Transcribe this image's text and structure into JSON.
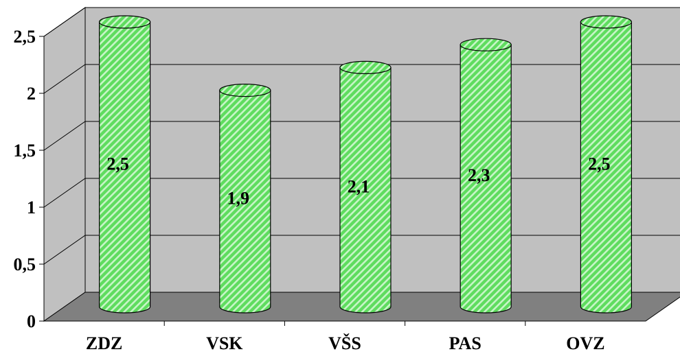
{
  "chart_data": {
    "type": "bar",
    "style": "3d-cylinder",
    "categories": [
      "ZDZ",
      "VSK",
      "VŠS",
      "PAS",
      "OVZ"
    ],
    "values": [
      2.5,
      1.9,
      2.1,
      2.3,
      2.5
    ],
    "data_labels": [
      "2,5",
      "1,9",
      "2,1",
      "2,3",
      "2,5"
    ],
    "y_ticks": [
      "0",
      "0,5",
      "1",
      "1,5",
      "2",
      "2,5"
    ],
    "y_tick_values": [
      0,
      0.5,
      1,
      1.5,
      2,
      2.5
    ],
    "ylim": [
      0,
      2.5
    ],
    "grid": true,
    "legend": "none",
    "title": "",
    "xlabel": "",
    "ylabel": "",
    "colors": {
      "bar_fill": "#5fdc5f",
      "bar_stripe": "#c8f5c8",
      "bar_outline": "#000000",
      "back_wall": "#c0c0c0",
      "floor": "#808080",
      "gridline": "#000000"
    }
  }
}
